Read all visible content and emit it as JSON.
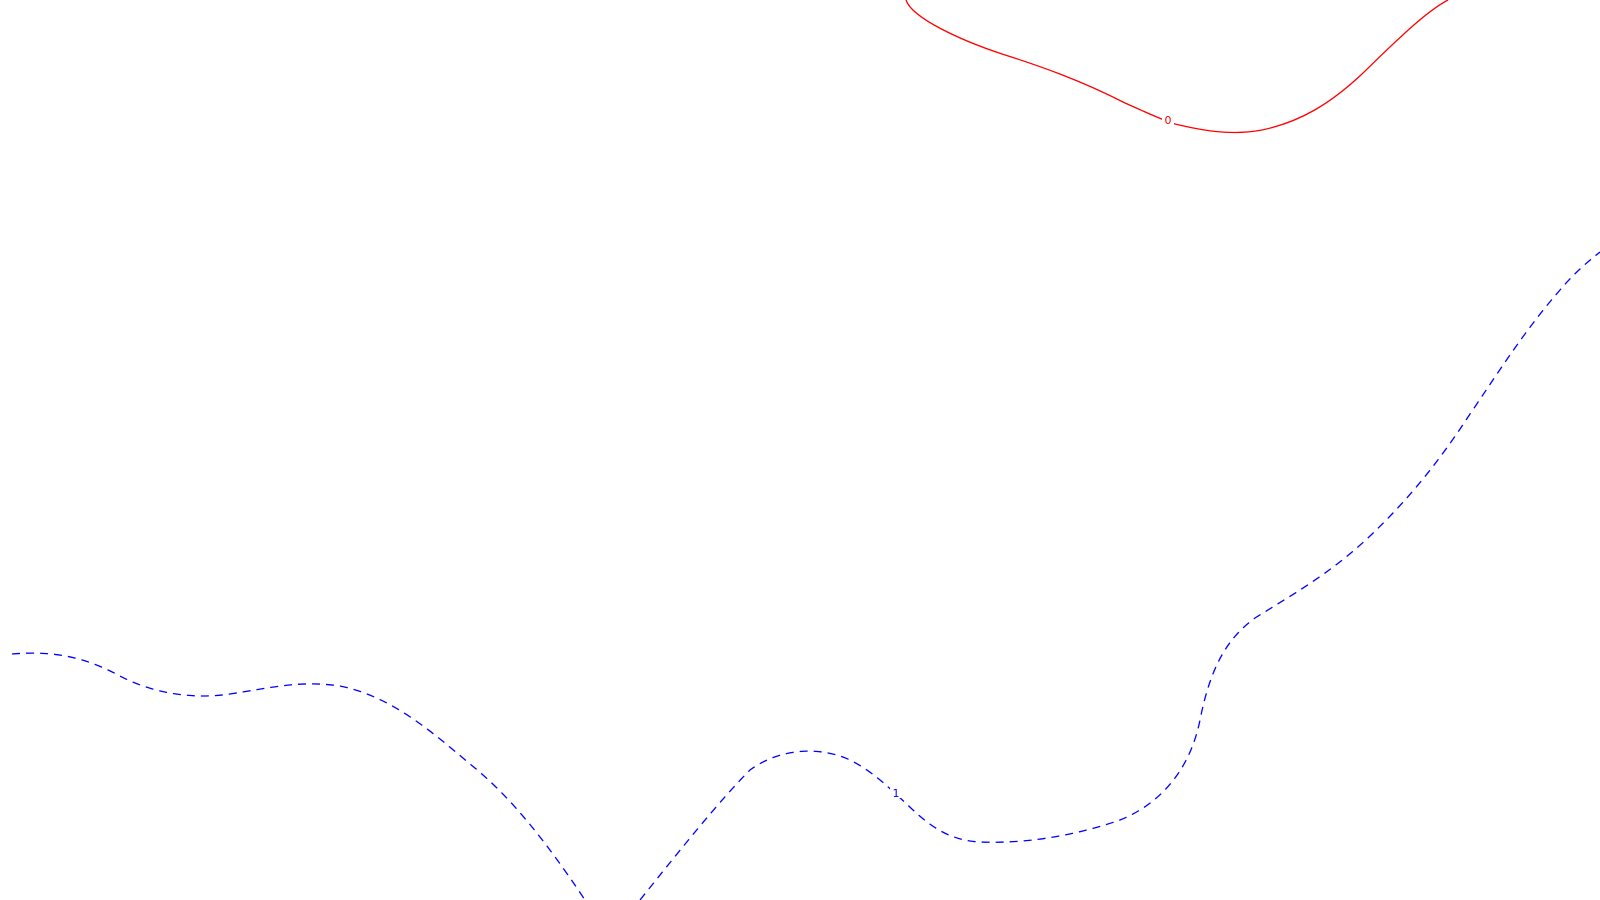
{
  "map": {
    "background_color": "#ffffff",
    "contours": [
      {
        "level_label": "0",
        "color": "#ff0000",
        "line_style": "solid"
      },
      {
        "level_label": "1",
        "color": "#0000ff",
        "line_style": "dashed"
      }
    ]
  }
}
